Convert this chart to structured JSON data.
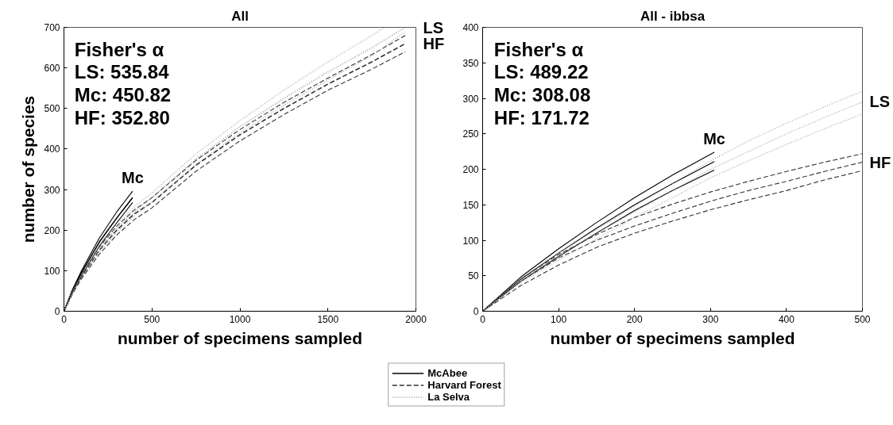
{
  "chart_data": [
    {
      "type": "line",
      "title": "All",
      "xlabel": "number of specimens sampled",
      "ylabel": "number of species",
      "xlim": [
        0,
        2000
      ],
      "ylim": [
        0,
        700
      ],
      "xticks": [
        0,
        500,
        1000,
        1500,
        2000
      ],
      "yticks": [
        0,
        100,
        200,
        300,
        400,
        500,
        600,
        700
      ],
      "grid": false,
      "legend": "bottom",
      "series": [
        {
          "name": "McAbee",
          "color": "#000000",
          "line_style": "solid",
          "x": [
            0,
            50,
            100,
            200,
            300,
            390
          ],
          "values": [
            0,
            52,
            95,
            170,
            230,
            280
          ]
        },
        {
          "color": "#000000",
          "line_style": "solid",
          "x": [
            0,
            50,
            100,
            200,
            300,
            390
          ],
          "values": [
            0,
            48,
            88,
            160,
            218,
            268
          ]
        },
        {
          "color": "#000000",
          "line_style": "solid",
          "x": [
            0,
            50,
            100,
            200,
            300,
            390
          ],
          "values": [
            0,
            55,
            100,
            180,
            245,
            296
          ]
        },
        {
          "name": "Harvard Forest",
          "color": "#333333",
          "line_style": "dashed",
          "x": [
            0,
            50,
            100,
            200,
            300,
            400,
            500,
            750,
            1000,
            1250,
            1500,
            1750,
            1940
          ],
          "values": [
            0,
            47,
            85,
            150,
            200,
            240,
            268,
            360,
            435,
            500,
            560,
            615,
            660
          ]
        },
        {
          "color": "#333333",
          "line_style": "dashed",
          "x": [
            0,
            50,
            100,
            200,
            300,
            400,
            500,
            750,
            1000,
            1250,
            1500,
            1750,
            1940
          ],
          "values": [
            0,
            44,
            80,
            140,
            188,
            226,
            255,
            345,
            420,
            485,
            545,
            597,
            640
          ]
        },
        {
          "color": "#333333",
          "line_style": "dashed",
          "x": [
            0,
            50,
            100,
            200,
            300,
            400,
            500,
            750,
            1000,
            1250,
            1500,
            1750,
            1940
          ],
          "values": [
            0,
            50,
            90,
            158,
            210,
            250,
            280,
            372,
            448,
            515,
            575,
            633,
            680
          ]
        },
        {
          "name": "La Selva",
          "color": "#999999",
          "line_style": "dotted",
          "x": [
            0,
            50,
            100,
            200,
            300,
            400,
            500,
            750,
            1000,
            1250,
            1500,
            1750,
            1940
          ],
          "values": [
            0,
            47,
            85,
            152,
            205,
            245,
            280,
            375,
            455,
            525,
            590,
            650,
            700
          ]
        },
        {
          "color": "#999999",
          "line_style": "dotted",
          "x": [
            0,
            50,
            100,
            200,
            300,
            400,
            500,
            750,
            1000,
            1250,
            1500,
            1750,
            1940
          ],
          "values": [
            0,
            44,
            80,
            144,
            195,
            235,
            270,
            362,
            440,
            508,
            570,
            630,
            690
          ]
        },
        {
          "color": "#999999",
          "line_style": "dotted",
          "x": [
            0,
            50,
            100,
            200,
            300,
            400,
            500,
            750,
            1000,
            1250,
            1500,
            1750,
            1820
          ],
          "values": [
            0,
            50,
            90,
            160,
            215,
            257,
            292,
            388,
            470,
            545,
            615,
            680,
            700
          ]
        }
      ],
      "annotations": [
        "Fisher's α",
        "LS: 535.84",
        "Mc: 450.82",
        "HF: 352.80",
        {
          "text": "Mc",
          "x": 390,
          "y": 296
        },
        {
          "text": "LS",
          "x": 1820,
          "y": 700
        },
        {
          "text": "HF",
          "x": 1940,
          "y": 660
        }
      ]
    },
    {
      "type": "line",
      "title": "All - ibbsa",
      "xlabel": "number of specimens sampled",
      "xlim": [
        0,
        500
      ],
      "ylim": [
        0,
        400
      ],
      "xticks": [
        0,
        100,
        200,
        300,
        400,
        500
      ],
      "yticks": [
        0,
        50,
        100,
        150,
        200,
        250,
        300,
        350,
        400
      ],
      "grid": false,
      "series": [
        {
          "color": "#000000",
          "line_style": "solid",
          "x": [
            0,
            50,
            100,
            150,
            200,
            250,
            305
          ],
          "values": [
            0,
            45,
            82,
            117,
            150,
            180,
            211
          ]
        },
        {
          "color": "#000000",
          "line_style": "solid",
          "x": [
            0,
            50,
            100,
            150,
            200,
            250,
            305
          ],
          "values": [
            0,
            42,
            77,
            110,
            142,
            170,
            199
          ]
        },
        {
          "color": "#000000",
          "line_style": "solid",
          "x": [
            0,
            50,
            100,
            150,
            200,
            250,
            305
          ],
          "values": [
            0,
            48,
            88,
            125,
            160,
            192,
            224
          ]
        },
        {
          "color": "#333333",
          "line_style": "dashed",
          "x": [
            0,
            50,
            100,
            150,
            200,
            250,
            300,
            350,
            400,
            450,
            500
          ],
          "values": [
            0,
            42,
            75,
            100,
            120,
            138,
            155,
            170,
            183,
            197,
            210
          ]
        },
        {
          "color": "#333333",
          "line_style": "dashed",
          "x": [
            0,
            50,
            100,
            150,
            200,
            250,
            300,
            350,
            400,
            450,
            500
          ],
          "values": [
            0,
            36,
            65,
            90,
            110,
            127,
            143,
            157,
            170,
            185,
            198
          ]
        },
        {
          "color": "#333333",
          "line_style": "dashed",
          "x": [
            0,
            50,
            100,
            150,
            200,
            250,
            300,
            350,
            400,
            450,
            500
          ],
          "values": [
            0,
            45,
            80,
            108,
            132,
            151,
            168,
            183,
            197,
            210,
            222
          ]
        },
        {
          "color": "#999999",
          "line_style": "dotted",
          "x": [
            0,
            50,
            100,
            150,
            200,
            250,
            300,
            350,
            400,
            450,
            500
          ],
          "values": [
            0,
            43,
            78,
            110,
            140,
            170,
            200,
            225,
            250,
            273,
            295
          ]
        },
        {
          "color": "#999999",
          "line_style": "dotted",
          "x": [
            0,
            50,
            100,
            150,
            200,
            250,
            300,
            350,
            400,
            450,
            500
          ],
          "values": [
            0,
            40,
            72,
            102,
            132,
            160,
            188,
            212,
            235,
            257,
            278
          ]
        },
        {
          "color": "#999999",
          "line_style": "dotted",
          "x": [
            0,
            50,
            100,
            150,
            200,
            250,
            300,
            350,
            400,
            450,
            500
          ],
          "values": [
            0,
            46,
            82,
            115,
            148,
            180,
            212,
            240,
            265,
            288,
            310
          ]
        }
      ],
      "annotations": [
        "Fisher's α",
        "LS: 489.22",
        "Mc: 308.08",
        "HF: 171.72",
        {
          "text": "Mc",
          "x": 305,
          "y": 224
        },
        {
          "text": "LS",
          "x": 500,
          "y": 295
        },
        {
          "text": "HF",
          "x": 500,
          "y": 210
        }
      ]
    }
  ]
}
